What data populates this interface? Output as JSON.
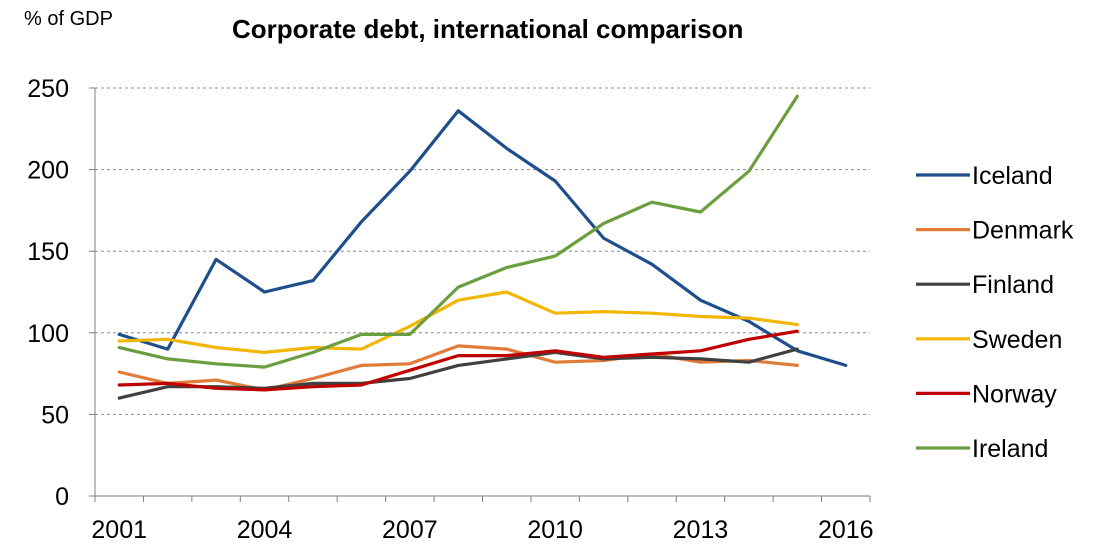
{
  "chart_data": {
    "type": "line",
    "title": "Corporate debt, international comparison",
    "ylabel": "% of GDP",
    "xlabel": "",
    "xlim": [
      2000.5,
      2016.5
    ],
    "ylim": [
      0,
      250
    ],
    "yticks": [
      0,
      50,
      100,
      150,
      200,
      250
    ],
    "xticks": [
      2001,
      2004,
      2007,
      2010,
      2013,
      2016
    ],
    "grid": "horizontal-dashed",
    "legend_position": "right",
    "x": [
      2001,
      2002,
      2003,
      2004,
      2005,
      2006,
      2007,
      2008,
      2009,
      2010,
      2011,
      2012,
      2013,
      2014,
      2015,
      2016
    ],
    "series": [
      {
        "name": "Iceland",
        "color": "#1f4e8c",
        "values": [
          99,
          90,
          145,
          125,
          132,
          168,
          199,
          236,
          213,
          193,
          158,
          142,
          120,
          107,
          89,
          80
        ]
      },
      {
        "name": "Denmark",
        "color": "#e07b39",
        "values": [
          76,
          69,
          71,
          65,
          72,
          80,
          81,
          92,
          90,
          82,
          83,
          87,
          82,
          83,
          80,
          null
        ]
      },
      {
        "name": "Finland",
        "color": "#404040",
        "values": [
          60,
          67,
          67,
          66,
          69,
          69,
          72,
          80,
          84,
          88,
          84,
          85,
          84,
          82,
          90,
          null
        ]
      },
      {
        "name": "Sweden",
        "color": "#f2b705",
        "values": [
          95,
          96,
          91,
          88,
          91,
          90,
          104,
          120,
          125,
          112,
          113,
          112,
          110,
          109,
          105,
          null
        ]
      },
      {
        "name": "Norway",
        "color": "#c00000",
        "values": [
          68,
          69,
          66,
          65,
          67,
          68,
          77,
          86,
          86,
          89,
          85,
          87,
          89,
          96,
          101,
          null
        ]
      },
      {
        "name": "Ireland",
        "color": "#6b9e3f",
        "values": [
          91,
          84,
          81,
          79,
          88,
          99,
          99,
          128,
          140,
          147,
          167,
          180,
          174,
          199,
          245,
          null
        ]
      }
    ]
  }
}
